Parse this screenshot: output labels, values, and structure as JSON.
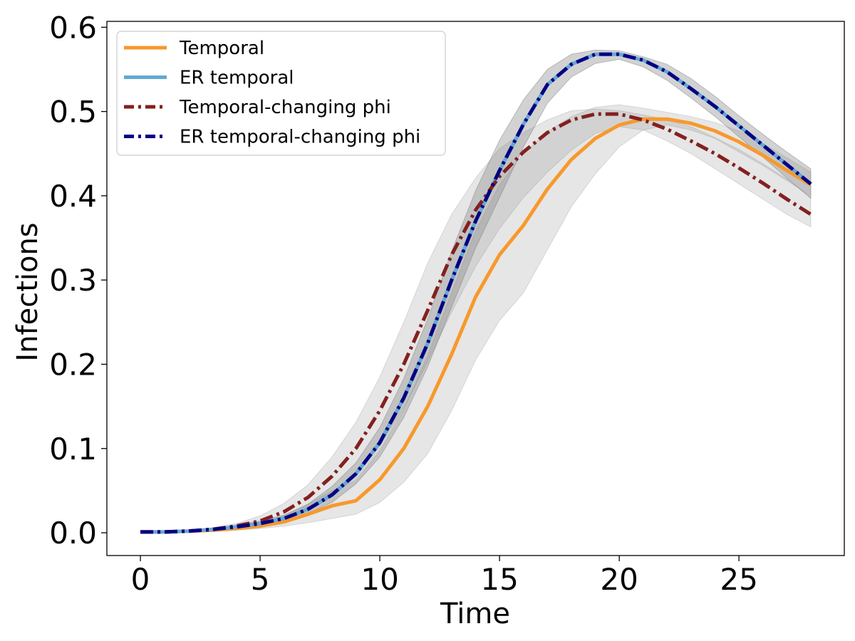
{
  "chart_data": {
    "type": "line",
    "xlabel": "Time",
    "ylabel": "Infections",
    "xlim": [
      -1.4,
      29.4
    ],
    "ylim": [
      -0.027,
      0.607
    ],
    "xticks": [
      0,
      5,
      10,
      15,
      20,
      25
    ],
    "yticks": [
      0.0,
      0.1,
      0.2,
      0.3,
      0.4,
      0.5,
      0.6
    ],
    "grid": false,
    "legend_position": "top-left",
    "x": [
      0,
      1,
      2,
      3,
      4,
      5,
      6,
      7,
      8,
      9,
      10,
      11,
      12,
      13,
      14,
      15,
      16,
      17,
      18,
      19,
      20,
      21,
      22,
      23,
      24,
      25,
      26,
      27,
      28
    ],
    "series": [
      {
        "name": "Temporal",
        "color": "#f7992c",
        "style": "solid",
        "values": [
          0.001,
          0.001,
          0.002,
          0.003,
          0.005,
          0.008,
          0.013,
          0.022,
          0.032,
          0.038,
          0.063,
          0.1,
          0.15,
          0.212,
          0.28,
          0.33,
          0.365,
          0.408,
          0.443,
          0.468,
          0.484,
          0.491,
          0.491,
          0.486,
          0.477,
          0.464,
          0.448,
          0.43,
          0.413
        ],
        "band_lower": [
          0.001,
          0.001,
          0.001,
          0.002,
          0.003,
          0.005,
          0.008,
          0.012,
          0.017,
          0.022,
          0.036,
          0.06,
          0.094,
          0.145,
          0.205,
          0.252,
          0.285,
          0.336,
          0.387,
          0.426,
          0.458,
          0.478,
          0.484,
          0.478,
          0.468,
          0.452,
          0.436,
          0.418,
          0.4
        ],
        "band_upper": [
          0.001,
          0.001,
          0.003,
          0.005,
          0.008,
          0.012,
          0.02,
          0.034,
          0.05,
          0.062,
          0.097,
          0.146,
          0.21,
          0.285,
          0.358,
          0.413,
          0.45,
          0.476,
          0.494,
          0.505,
          0.508,
          0.504,
          0.499,
          0.494,
          0.487,
          0.477,
          0.462,
          0.445,
          0.428
        ]
      },
      {
        "name": "ER temporal",
        "color": "#64a8d1",
        "style": "solid",
        "values": [
          0.001,
          0.001,
          0.002,
          0.004,
          0.007,
          0.011,
          0.017,
          0.028,
          0.045,
          0.07,
          0.107,
          0.16,
          0.225,
          0.3,
          0.37,
          0.43,
          0.485,
          0.532,
          0.556,
          0.568,
          0.568,
          0.561,
          0.547,
          0.527,
          0.506,
          0.483,
          0.46,
          0.437,
          0.414
        ],
        "band_lower": [
          0.001,
          0.001,
          0.002,
          0.003,
          0.005,
          0.009,
          0.014,
          0.023,
          0.036,
          0.058,
          0.09,
          0.137,
          0.197,
          0.268,
          0.338,
          0.398,
          0.458,
          0.51,
          0.541,
          0.557,
          0.562,
          0.553,
          0.537,
          0.516,
          0.494,
          0.47,
          0.446,
          0.421,
          0.397
        ],
        "band_upper": [
          0.001,
          0.001,
          0.002,
          0.005,
          0.009,
          0.014,
          0.021,
          0.034,
          0.055,
          0.083,
          0.125,
          0.183,
          0.254,
          0.334,
          0.406,
          0.466,
          0.514,
          0.55,
          0.568,
          0.573,
          0.572,
          0.565,
          0.556,
          0.539,
          0.518,
          0.495,
          0.473,
          0.452,
          0.432
        ]
      },
      {
        "name": "Temporal-changing phi",
        "color": "#83201f",
        "style": "dashdot",
        "values": [
          0.001,
          0.001,
          0.002,
          0.004,
          0.008,
          0.014,
          0.025,
          0.042,
          0.067,
          0.1,
          0.145,
          0.2,
          0.264,
          0.33,
          0.383,
          0.423,
          0.452,
          0.475,
          0.49,
          0.497,
          0.497,
          0.49,
          0.479,
          0.465,
          0.45,
          0.433,
          0.415,
          0.396,
          0.378
        ],
        "band_lower": [
          0.001,
          0.001,
          0.001,
          0.003,
          0.005,
          0.009,
          0.016,
          0.028,
          0.045,
          0.07,
          0.104,
          0.148,
          0.203,
          0.262,
          0.316,
          0.361,
          0.398,
          0.428,
          0.454,
          0.474,
          0.482,
          0.478,
          0.465,
          0.45,
          0.432,
          0.414,
          0.396,
          0.378,
          0.363
        ],
        "band_upper": [
          0.001,
          0.001,
          0.003,
          0.006,
          0.011,
          0.02,
          0.035,
          0.057,
          0.09,
          0.131,
          0.185,
          0.25,
          0.32,
          0.378,
          0.421,
          0.456,
          0.475,
          0.49,
          0.501,
          0.503,
          0.501,
          0.496,
          0.49,
          0.482,
          0.469,
          0.455,
          0.438,
          0.42,
          0.398
        ]
      },
      {
        "name": "ER temporal-changing phi",
        "color": "#000084",
        "style": "dashdot",
        "values": [
          0.001,
          0.001,
          0.002,
          0.004,
          0.007,
          0.011,
          0.017,
          0.028,
          0.045,
          0.07,
          0.107,
          0.16,
          0.225,
          0.3,
          0.37,
          0.43,
          0.485,
          0.532,
          0.556,
          0.568,
          0.568,
          0.561,
          0.547,
          0.527,
          0.506,
          0.483,
          0.46,
          0.437,
          0.414
        ],
        "band_lower": [
          0.001,
          0.001,
          0.002,
          0.003,
          0.005,
          0.009,
          0.014,
          0.023,
          0.036,
          0.058,
          0.09,
          0.137,
          0.197,
          0.268,
          0.338,
          0.398,
          0.458,
          0.51,
          0.541,
          0.557,
          0.562,
          0.553,
          0.537,
          0.516,
          0.494,
          0.47,
          0.446,
          0.421,
          0.397
        ],
        "band_upper": [
          0.001,
          0.001,
          0.002,
          0.005,
          0.009,
          0.014,
          0.021,
          0.034,
          0.055,
          0.083,
          0.125,
          0.183,
          0.254,
          0.334,
          0.406,
          0.466,
          0.514,
          0.55,
          0.568,
          0.573,
          0.572,
          0.565,
          0.556,
          0.539,
          0.518,
          0.495,
          0.473,
          0.452,
          0.432
        ]
      }
    ],
    "band_color": "#808080"
  }
}
